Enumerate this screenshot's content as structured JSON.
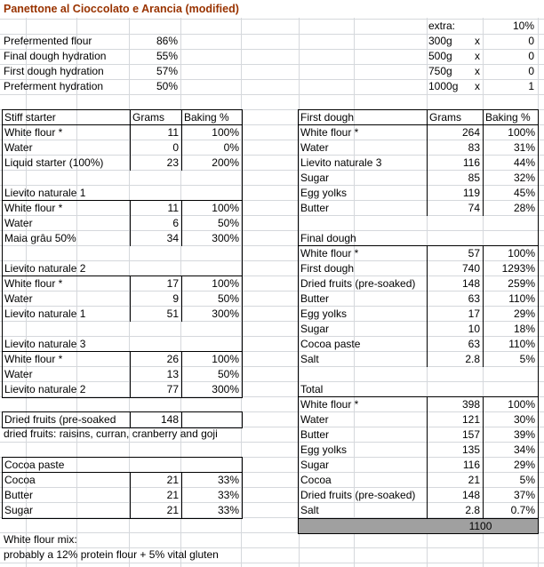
{
  "title": "Panettone al Cioccolato e Arancia (modified)",
  "colors": {
    "title_text": "#993300",
    "table_border": "#000000",
    "gridline": "#d5d8dc",
    "total_row_fill": "#a0a0a0"
  },
  "summary": [
    {
      "label": "Prefermented flour",
      "value": "86%"
    },
    {
      "label": "Final dough hydration",
      "value": "55%"
    },
    {
      "label": "First dough hydration",
      "value": "57%"
    },
    {
      "label": "Preferment hydration",
      "value": "50%"
    }
  ],
  "extra": {
    "label": "extra:",
    "percent": "10%",
    "rows": [
      {
        "size": "300g",
        "times": "x",
        "count": "0"
      },
      {
        "size": "500g",
        "times": "x",
        "count": "0"
      },
      {
        "size": "750g",
        "times": "x",
        "count": "0"
      },
      {
        "size": "1000g",
        "times": "x",
        "count": "1"
      }
    ]
  },
  "starter_table": {
    "header": {
      "name": "Stiff starter",
      "grams": "Grams",
      "baking": "Baking %"
    },
    "rows": [
      {
        "type": "data",
        "label": "White flour *",
        "grams": "11",
        "baking": "100%"
      },
      {
        "type": "data",
        "label": "Water",
        "grams": "0",
        "baking": "0%"
      },
      {
        "type": "data",
        "label": "Liquid starter (100%)",
        "grams": "23",
        "baking": "200%"
      },
      {
        "type": "blank"
      },
      {
        "type": "section",
        "label": "Lievito naturale 1"
      },
      {
        "type": "data",
        "label": "White flour *",
        "grams": "11",
        "baking": "100%"
      },
      {
        "type": "data",
        "label": "Water",
        "grams": "6",
        "baking": "50%"
      },
      {
        "type": "data",
        "label": "Maia grâu 50%",
        "grams": "34",
        "baking": "300%"
      },
      {
        "type": "blank"
      },
      {
        "type": "section",
        "label": "Lievito naturale 2"
      },
      {
        "type": "data",
        "label": "White flour *",
        "grams": "17",
        "baking": "100%"
      },
      {
        "type": "data",
        "label": "Water",
        "grams": "9",
        "baking": "50%"
      },
      {
        "type": "data",
        "label": "Lievito naturale 1",
        "grams": "51",
        "baking": "300%"
      },
      {
        "type": "blank"
      },
      {
        "type": "section",
        "label": "Lievito naturale 3"
      },
      {
        "type": "data",
        "label": "White flour *",
        "grams": "26",
        "baking": "100%"
      },
      {
        "type": "data",
        "label": "Water",
        "grams": "13",
        "baking": "50%"
      },
      {
        "type": "data",
        "label": "Lievito naturale 2",
        "grams": "77",
        "baking": "300%"
      }
    ]
  },
  "dough_table": {
    "header": {
      "name": "First dough",
      "grams": "Grams",
      "baking": "Baking %"
    },
    "rows": [
      {
        "type": "data",
        "label": "White flour *",
        "grams": "264",
        "baking": "100%"
      },
      {
        "type": "data",
        "label": "Water",
        "grams": "83",
        "baking": "31%"
      },
      {
        "type": "data",
        "label": "Lievito naturale 3",
        "grams": "116",
        "baking": "44%"
      },
      {
        "type": "data",
        "label": "Sugar",
        "grams": "85",
        "baking": "32%"
      },
      {
        "type": "data",
        "label": "Egg yolks",
        "grams": "119",
        "baking": "45%"
      },
      {
        "type": "data",
        "label": "Butter",
        "grams": "74",
        "baking": "28%"
      },
      {
        "type": "blank"
      },
      {
        "type": "section",
        "label": "Final dough"
      },
      {
        "type": "data",
        "label": "White flour *",
        "grams": "57",
        "baking": "100%"
      },
      {
        "type": "data",
        "label": "First dough",
        "grams": "740",
        "baking": "1293%"
      },
      {
        "type": "data",
        "label": "Dried fruits (pre-soaked)",
        "grams": "148",
        "baking": "259%"
      },
      {
        "type": "data",
        "label": "Butter",
        "grams": "63",
        "baking": "110%"
      },
      {
        "type": "data",
        "label": "Egg yolks",
        "grams": "17",
        "baking": "29%"
      },
      {
        "type": "data",
        "label": "Sugar",
        "grams": "10",
        "baking": "18%"
      },
      {
        "type": "data",
        "label": "Cocoa paste",
        "grams": "63",
        "baking": "110%"
      },
      {
        "type": "data",
        "label": "Salt",
        "grams": "2.8",
        "baking": "5%"
      },
      {
        "type": "blank"
      },
      {
        "type": "section",
        "label": "Total"
      },
      {
        "type": "data",
        "label": "White flour *",
        "grams": "398",
        "baking": "100%"
      },
      {
        "type": "data",
        "label": "Water",
        "grams": "121",
        "baking": "30%"
      },
      {
        "type": "data",
        "label": "Butter",
        "grams": "157",
        "baking": "39%"
      },
      {
        "type": "data",
        "label": "Egg yolks",
        "grams": "135",
        "baking": "34%"
      },
      {
        "type": "data",
        "label": "Sugar",
        "grams": "116",
        "baking": "29%"
      },
      {
        "type": "data",
        "label": "Cocoa",
        "grams": "21",
        "baking": "5%"
      },
      {
        "type": "data",
        "label": "Dried fruits (pre-soaked)",
        "grams": "148",
        "baking": "37%"
      },
      {
        "type": "data",
        "label": "Salt",
        "grams": "2.8",
        "baking": "0.7%"
      },
      {
        "type": "total",
        "grams": "1100"
      }
    ]
  },
  "dried_fruits": {
    "label": "Dried fruits (pre-soaked",
    "grams": "148",
    "note": "dried fruits: raisins, curran, cranberry and goji"
  },
  "cocoa_table": {
    "title": "Cocoa paste",
    "rows": [
      {
        "label": "Cocoa",
        "grams": "21",
        "baking": "33%"
      },
      {
        "label": "Butter",
        "grams": "21",
        "baking": "33%"
      },
      {
        "label": "Sugar",
        "grams": "21",
        "baking": "33%"
      }
    ]
  },
  "footer": {
    "line1": "White flour mix:",
    "line2": "probably a 12% protein flour + 5% vital gluten"
  }
}
